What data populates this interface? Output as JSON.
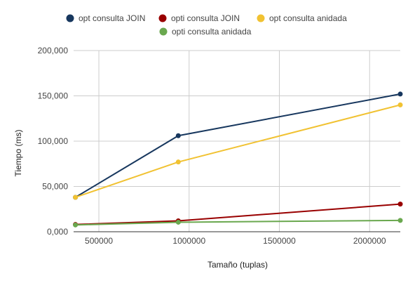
{
  "chart_data": {
    "type": "line",
    "title": "",
    "xlabel": "Tamaño (tuplas)",
    "ylabel": "Tiempo (ms)",
    "xlim": [
      360000,
      2170000
    ],
    "ylim": [
      0,
      200000
    ],
    "x_ticks": [
      500000,
      1000000,
      1500000,
      2000000
    ],
    "x_tick_labels": [
      "500000",
      "1000000",
      "1500000",
      "2000000"
    ],
    "y_ticks": [
      0,
      50000,
      100000,
      150000,
      200000
    ],
    "y_tick_labels": [
      "0,000",
      "50,000",
      "100,000",
      "150,000",
      "200,000"
    ],
    "grid": true,
    "legend_position": "top",
    "x": [
      370000,
      940000,
      2170000
    ],
    "series": [
      {
        "name": "opt consulta JOIN",
        "color": "#17375e",
        "values": [
          38000,
          106000,
          152000
        ]
      },
      {
        "name": "opti consulta JOIN",
        "color": "#990000",
        "values": [
          8000,
          12000,
          30500
        ]
      },
      {
        "name": "opt consulta anidada",
        "color": "#f1c232",
        "values": [
          38000,
          77000,
          140000
        ]
      },
      {
        "name": "opti consulta anidada",
        "color": "#6aa84f",
        "values": [
          7500,
          10500,
          12500
        ]
      }
    ]
  }
}
